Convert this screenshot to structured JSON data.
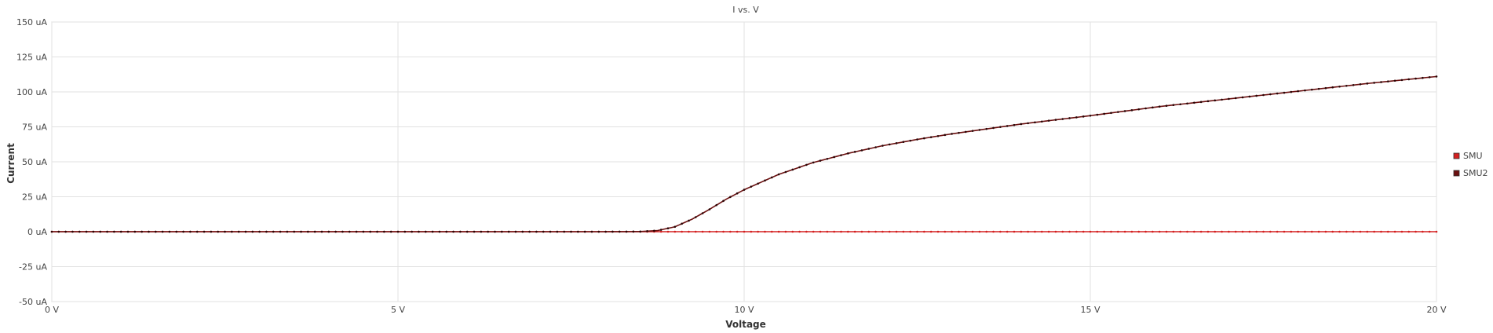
{
  "chart_data": {
    "type": "line",
    "title": "I vs. V",
    "xlabel": "Voltage",
    "ylabel": "Current",
    "xlim": [
      0,
      20
    ],
    "ylim": [
      -50,
      150
    ],
    "x_ticks": [
      {
        "value": 0,
        "label": "0 V"
      },
      {
        "value": 5,
        "label": "5 V"
      },
      {
        "value": 10,
        "label": "10 V"
      },
      {
        "value": 15,
        "label": "15 V"
      },
      {
        "value": 20,
        "label": "20 V"
      }
    ],
    "y_ticks": [
      {
        "value": 150,
        "label": "150 uA"
      },
      {
        "value": 125,
        "label": "125 uA"
      },
      {
        "value": 100,
        "label": "100 uA"
      },
      {
        "value": 75,
        "label": "75 uA"
      },
      {
        "value": 50,
        "label": "50 uA"
      },
      {
        "value": 25,
        "label": "25 uA"
      },
      {
        "value": 0,
        "label": "0 uA"
      },
      {
        "value": -25,
        "label": "-25 uA"
      },
      {
        "value": -50,
        "label": "-50 uA"
      }
    ],
    "grid": true,
    "legend_position": "right",
    "series": [
      {
        "name": "SMU",
        "color": "#d42020",
        "x": [
          0,
          5,
          10,
          15,
          20
        ],
        "y": [
          0,
          0,
          0,
          0,
          0
        ]
      },
      {
        "name": "SMU2",
        "color": "#6b1010",
        "x": [
          0,
          1,
          2,
          3,
          4,
          5,
          6,
          7,
          8,
          8.5,
          8.75,
          9,
          9.25,
          9.5,
          9.75,
          10,
          10.5,
          11,
          11.5,
          12,
          12.5,
          13,
          13.5,
          14,
          14.5,
          15,
          16,
          17,
          18,
          19,
          20
        ],
        "y": [
          0,
          0,
          0,
          0,
          0,
          0,
          0,
          0,
          0,
          0.1,
          0.8,
          3.5,
          9,
          16,
          23.5,
          30,
          41,
          49.5,
          56,
          61.5,
          66,
          70,
          73.5,
          77,
          80,
          83,
          89.5,
          95,
          100.5,
          106,
          111
        ]
      }
    ]
  }
}
